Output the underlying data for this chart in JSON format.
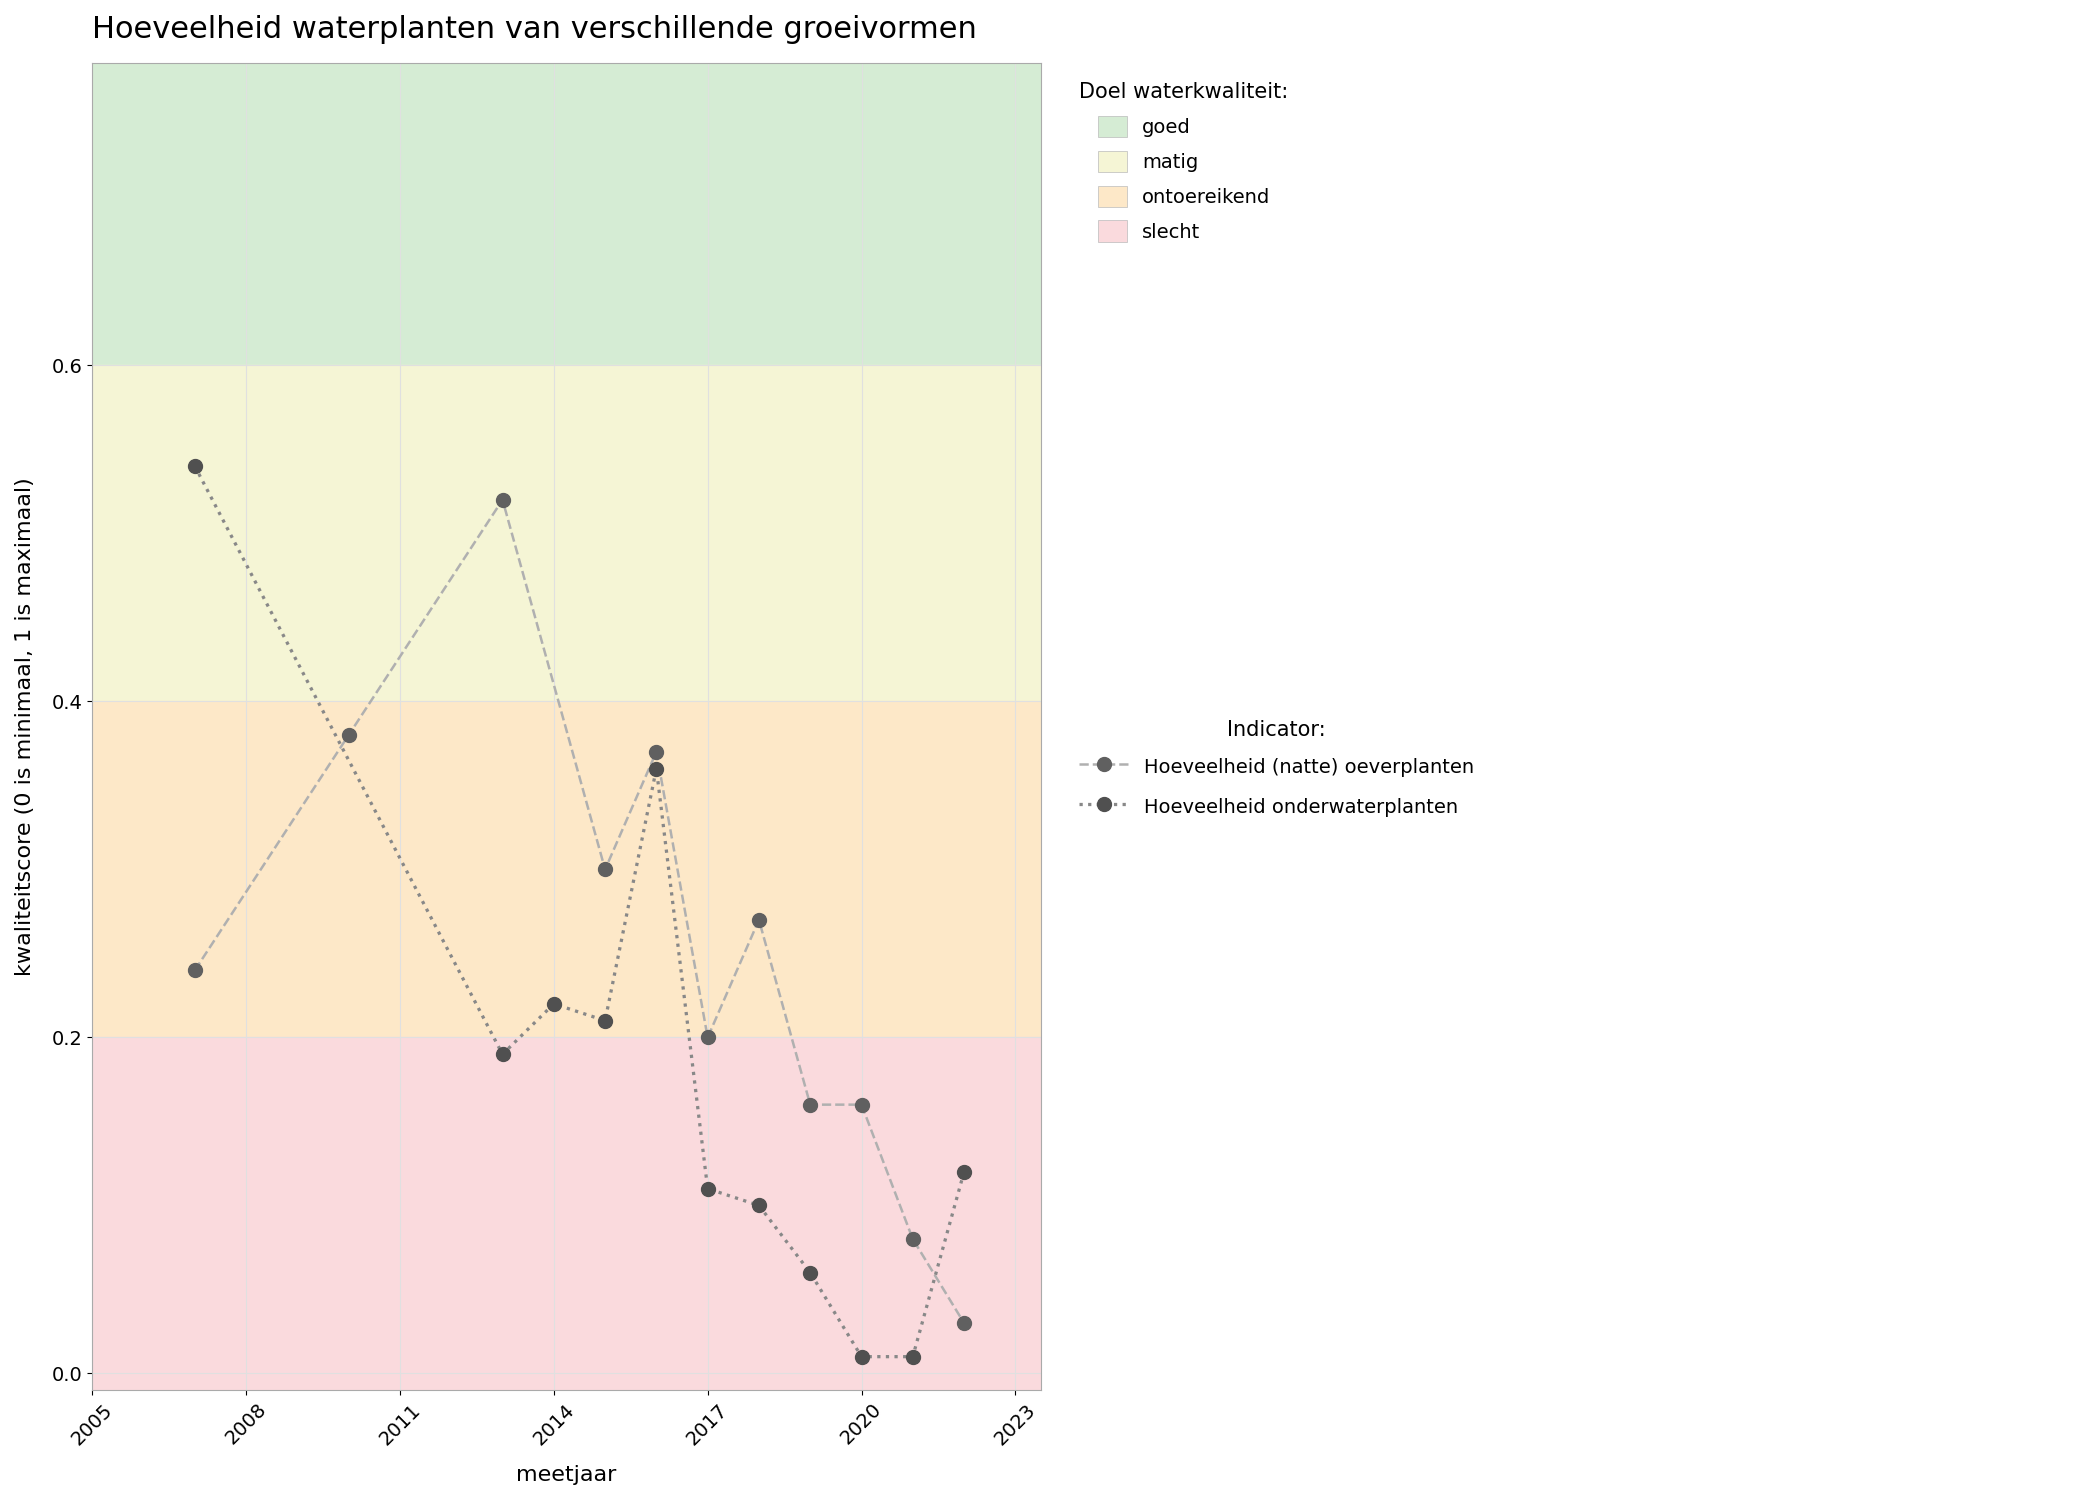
{
  "title": "Hoeveelheid waterplanten van verschillende groeivormen",
  "xlabel": "meetjaar",
  "ylabel": "kwaliteitscore (0 is minimaal, 1 is maximaal)",
  "xlim": [
    2005,
    2023.5
  ],
  "ylim": [
    -0.01,
    0.78
  ],
  "xticks": [
    2005,
    2008,
    2011,
    2014,
    2017,
    2020,
    2023
  ],
  "yticks": [
    0.0,
    0.2,
    0.4,
    0.6
  ],
  "background_color": "#ffffff",
  "bg_green": {
    "ymin": 0.6,
    "ymax": 0.78,
    "color": "#d5ecd4"
  },
  "bg_yellow": {
    "ymin": 0.4,
    "ymax": 0.6,
    "color": "#f5f5d5"
  },
  "bg_orange": {
    "ymin": 0.2,
    "ymax": 0.4,
    "color": "#fde8c8"
  },
  "bg_pink": {
    "ymin": -0.01,
    "ymax": 0.2,
    "color": "#fadadd"
  },
  "series_oever": {
    "label": "Hoeveelheid (natte) oeverplanten",
    "color": "#b0b0b0",
    "marker_color": "#606060",
    "x": [
      2007,
      2010,
      2013,
      2015,
      2016,
      2017,
      2018,
      2019,
      2020,
      2021,
      2022
    ],
    "y": [
      0.24,
      0.38,
      0.52,
      0.3,
      0.37,
      0.2,
      0.27,
      0.16,
      0.16,
      0.08,
      0.03
    ]
  },
  "series_onder": {
    "label": "Hoeveelheid onderwaterplanten",
    "color": "#888888",
    "marker_color": "#505050",
    "x": [
      2007,
      2013,
      2014,
      2015,
      2016,
      2017,
      2018,
      2019,
      2020,
      2021,
      2022
    ],
    "y": [
      0.54,
      0.19,
      0.22,
      0.21,
      0.36,
      0.11,
      0.1,
      0.06,
      0.01,
      0.01,
      0.12
    ]
  },
  "legend_doel_title": "Doel waterkwaliteit:",
  "legend_indicator_title": "Indicator:",
  "doel_items": [
    {
      "label": "goed",
      "color": "#d5ecd4"
    },
    {
      "label": "matig",
      "color": "#f5f5d5"
    },
    {
      "label": "ontoereikend",
      "color": "#fde8c8"
    },
    {
      "label": "slecht",
      "color": "#fadadd"
    }
  ],
  "grid_color": "#e0e0e0",
  "marker_size": 100,
  "linewidth": 1.8,
  "title_fontsize": 22,
  "label_fontsize": 16,
  "tick_fontsize": 14,
  "legend_fontsize": 14
}
